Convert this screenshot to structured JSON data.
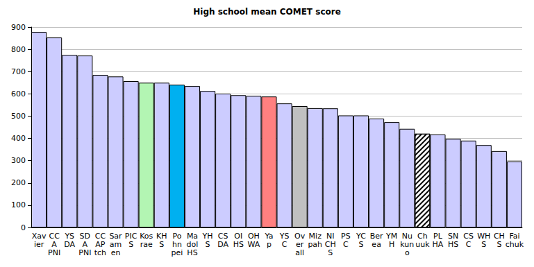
{
  "chart_data": {
    "type": "bar",
    "title": "High school mean COMET score",
    "categories": [
      "Xav\nier",
      "CC\nA\nPNI",
      "YS\nDA",
      "SD\nA\nPNI",
      "CC\nAP\ntch",
      "Sar\nam\nen",
      "PIC\nS",
      "Kos\nrae",
      "KH\nS",
      "Po\nhn\npei",
      "Ma\ndol\nHS",
      "YH\nS",
      "CS\nDA",
      "OI\nHS",
      "OH\nWA",
      "Ya\np",
      "YS\nC",
      "Ov\ner\nall",
      "Miz\npah",
      "NI\nCH\nS",
      "PS\nC",
      "YC\nS",
      "Ber\nea",
      "YM\nH",
      "Nu\nkun\no",
      "Ch\nuuk",
      "PL\nHA",
      "SN\nHS",
      "CS\nC",
      "WH\nS",
      "CH\nS",
      "Fai\nchuk"
    ],
    "values": [
      878,
      853,
      775,
      772,
      685,
      678,
      657,
      650,
      650,
      641,
      635,
      613,
      601,
      594,
      591,
      588,
      557,
      545,
      536,
      535,
      503,
      503,
      489,
      473,
      443,
      421,
      418,
      398,
      390,
      370,
      343,
      297
    ],
    "colors": [
      "#ccccff",
      "#ccccff",
      "#ccccff",
      "#ccccff",
      "#ccccff",
      "#ccccff",
      "#ccccff",
      "#b3f5b3",
      "#ccccff",
      "#00b0f0",
      "#ccccff",
      "#ccccff",
      "#ccccff",
      "#ccccff",
      "#ccccff",
      "#ff8080",
      "#ccccff",
      "#c0c0c0",
      "#ccccff",
      "#ccccff",
      "#ccccff",
      "#ccccff",
      "#ccccff",
      "#ccccff",
      "#ccccff",
      "#ffffff",
      "#ccccff",
      "#ccccff",
      "#ccccff",
      "#ccccff",
      "#ccccff",
      "#ccccff"
    ],
    "ylim": [
      0,
      900
    ],
    "yticks": [
      0,
      100,
      200,
      300,
      400,
      500,
      600,
      700,
      800,
      900
    ],
    "grid": true
  }
}
